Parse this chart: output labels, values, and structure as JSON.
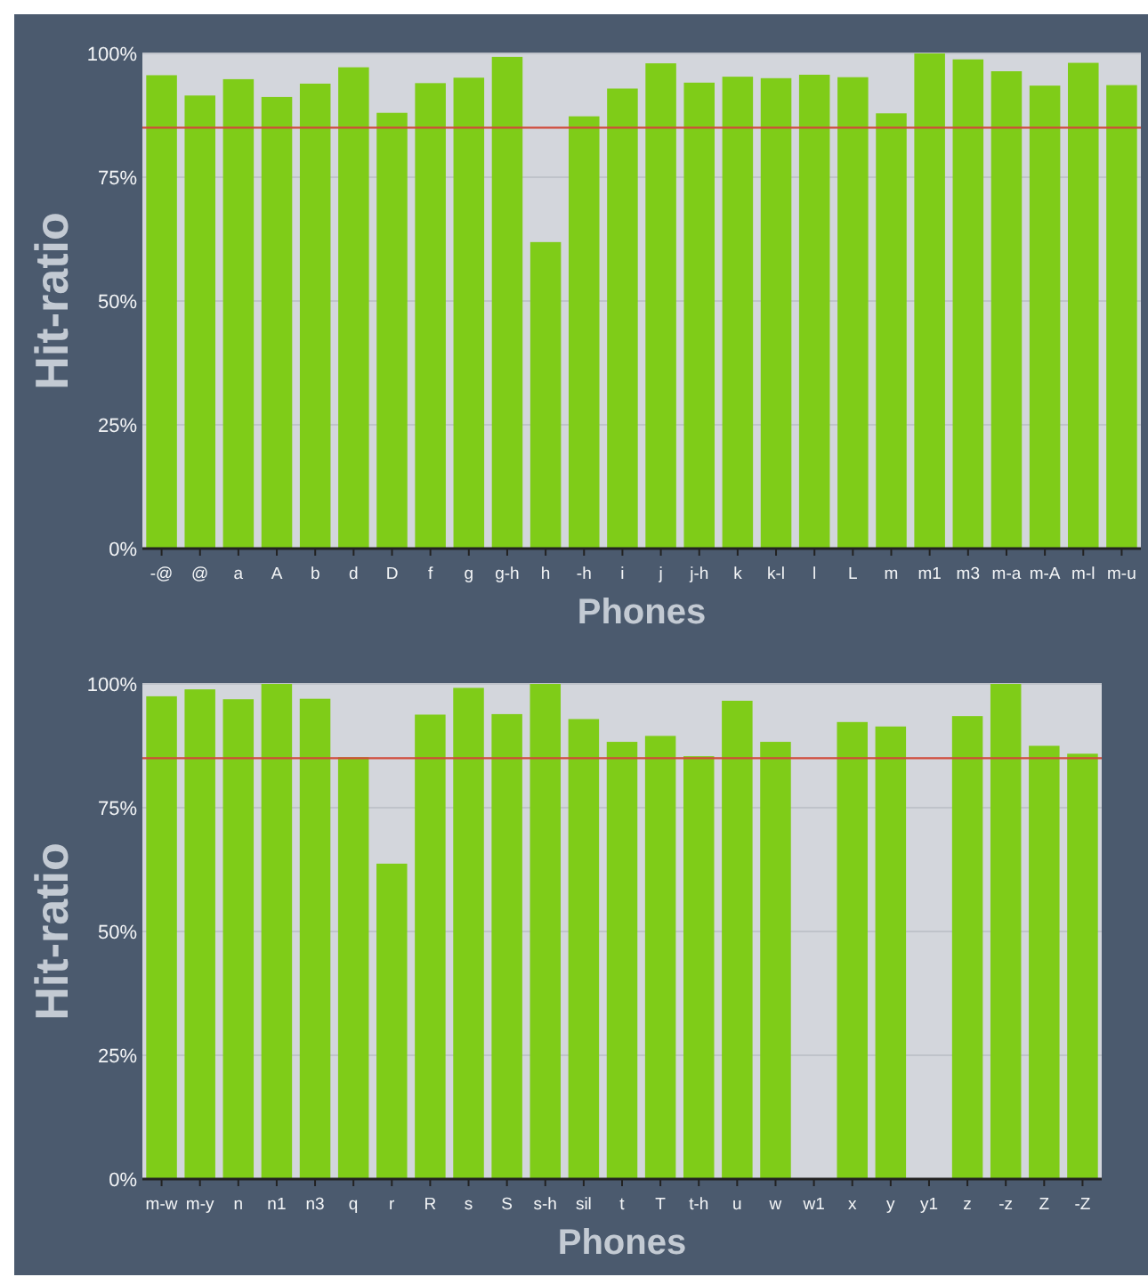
{
  "chart_data": [
    {
      "type": "bar",
      "ylabel": "Hit-ratio",
      "xlabel": "Phones",
      "color": "#7fcc18",
      "categories": [
        "-@",
        "@",
        "a",
        "A",
        "b",
        "d",
        "D",
        "f",
        "g",
        "g-h",
        "h",
        "-h",
        "i",
        "j",
        "j-h",
        "k",
        "k-l",
        "l",
        "L",
        "m",
        "m1",
        "m3",
        "m-a",
        "m-A",
        "m-l",
        "m-u"
      ],
      "values": [
        95.6,
        91.5,
        94.8,
        91.2,
        93.9,
        97.2,
        88,
        94,
        95.1,
        99.3,
        61.9,
        87.3,
        92.9,
        98,
        94.1,
        95.3,
        95,
        95.7,
        95.2,
        87.9,
        100,
        98.8,
        96.4,
        93.5,
        98.1,
        93.6
      ],
      "ylim": [
        0,
        100
      ],
      "yticks": [
        {
          "value": 0,
          "label": "0%"
        },
        {
          "value": 25,
          "label": "25%"
        },
        {
          "value": 50,
          "label": "50%"
        },
        {
          "value": 75,
          "label": "75%"
        },
        {
          "value": 100,
          "label": "100%"
        }
      ],
      "grid": "y",
      "ref_lines": [
        {
          "axis": "y",
          "value": 85,
          "color": "#d04a3a"
        }
      ]
    },
    {
      "type": "bar",
      "ylabel": "Hit-ratio",
      "xlabel": "Phones",
      "color": "#7fcc18",
      "categories": [
        "m-w",
        "m-y",
        "n",
        "n1",
        "n3",
        "q",
        "r",
        "R",
        "s",
        "S",
        "s-h",
        "sil",
        "t",
        "T",
        "t-h",
        "u",
        "w",
        "w1",
        "x",
        "y",
        "y1",
        "z",
        "-z",
        "Z",
        "-Z"
      ],
      "values": [
        97.5,
        98.9,
        96.9,
        100,
        97,
        85.2,
        63.7,
        93.8,
        99.2,
        93.9,
        100,
        92.9,
        88.3,
        89.5,
        85.4,
        96.6,
        88.3,
        null,
        92.3,
        91.4,
        null,
        93.5,
        100,
        87.5,
        85.9
      ],
      "ylim": [
        0,
        100
      ],
      "yticks": [
        {
          "value": 0,
          "label": "0%"
        },
        {
          "value": 25,
          "label": "25%"
        },
        {
          "value": 50,
          "label": "50%"
        },
        {
          "value": 75,
          "label": "75%"
        },
        {
          "value": 100,
          "label": "100%"
        }
      ],
      "grid": "y",
      "ref_lines": [
        {
          "axis": "y",
          "value": 85,
          "color": "#d04a3a"
        }
      ]
    }
  ]
}
